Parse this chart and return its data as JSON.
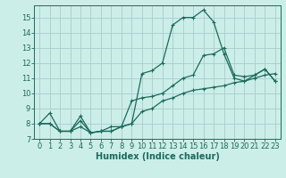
{
  "title": "",
  "xlabel": "Humidex (Indice chaleur)",
  "background_color": "#cceee8",
  "grid_color": "#aacccc",
  "line_color": "#1a6b5a",
  "xlim": [
    -0.5,
    23.5
  ],
  "ylim": [
    7,
    15.8
  ],
  "xticks": [
    0,
    1,
    2,
    3,
    4,
    5,
    6,
    7,
    8,
    9,
    10,
    11,
    12,
    13,
    14,
    15,
    16,
    17,
    18,
    19,
    20,
    21,
    22,
    23
  ],
  "yticks": [
    7,
    8,
    9,
    10,
    11,
    12,
    13,
    14,
    15
  ],
  "line1_x": [
    0,
    1,
    2,
    3,
    4,
    5,
    6,
    7,
    8,
    9,
    10,
    11,
    12,
    13,
    14,
    15,
    16,
    17,
    18,
    19,
    20,
    21,
    22,
    23
  ],
  "line1_y": [
    8.0,
    8.7,
    7.5,
    7.5,
    8.5,
    7.4,
    7.5,
    7.8,
    7.8,
    9.5,
    9.7,
    9.8,
    10.0,
    10.5,
    11.0,
    11.2,
    12.5,
    12.6,
    13.0,
    11.2,
    11.1,
    11.2,
    11.6,
    10.8
  ],
  "line2_x": [
    0,
    1,
    2,
    3,
    4,
    5,
    6,
    7,
    8,
    9,
    10,
    11,
    12,
    13,
    14,
    15,
    16,
    17,
    18,
    19,
    20,
    21,
    22,
    23
  ],
  "line2_y": [
    8.0,
    8.0,
    7.5,
    7.5,
    8.2,
    7.4,
    7.5,
    7.5,
    7.8,
    8.0,
    11.3,
    11.5,
    12.0,
    14.5,
    15.0,
    15.0,
    15.5,
    14.7,
    12.6,
    11.0,
    10.8,
    11.2,
    11.6,
    10.8
  ],
  "line3_x": [
    0,
    1,
    2,
    3,
    4,
    5,
    6,
    7,
    8,
    9,
    10,
    11,
    12,
    13,
    14,
    15,
    16,
    17,
    18,
    19,
    20,
    21,
    22,
    23
  ],
  "line3_y": [
    8.0,
    8.0,
    7.5,
    7.5,
    7.8,
    7.4,
    7.5,
    7.5,
    7.8,
    8.0,
    8.8,
    9.0,
    9.5,
    9.7,
    10.0,
    10.2,
    10.3,
    10.4,
    10.5,
    10.7,
    10.8,
    11.0,
    11.2,
    11.3
  ],
  "tick_fontsize": 6,
  "xlabel_fontsize": 7
}
